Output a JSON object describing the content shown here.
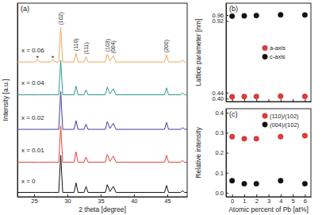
{
  "chart_data": [
    {
      "type": "line",
      "title": "(a)",
      "x_label": "2 theta [degree]",
      "y_label": "Intensity [a.u.]",
      "x": [
        22.5,
        25.2,
        25.5,
        25.8,
        27.5,
        27.8,
        28.1,
        28.7,
        29.0,
        29.3,
        31.0,
        31.3,
        31.6,
        32.5,
        32.8,
        33.1,
        35.7,
        36.0,
        36.4,
        36.9,
        37.3,
        44.6,
        44.9,
        45.2,
        47.0,
        47.3,
        47.6,
        48.0
      ],
      "series": [
        {
          "name": "x = 0",
          "color": "#111111",
          "values": [
            2.5,
            2.5,
            2.5,
            2.5,
            2.5,
            2.5,
            2.5,
            2.5,
            24,
            2.5,
            2.5,
            8,
            2.5,
            2.5,
            6,
            2.5,
            2.5,
            7,
            3,
            6,
            2.5,
            2.5,
            6.5,
            2.5,
            2.5,
            3.5,
            2.5,
            2.5
          ]
        },
        {
          "name": "x = 0.01",
          "color": "#e0453c",
          "values": [
            20,
            20,
            20,
            20,
            20,
            20,
            20,
            20,
            41,
            20,
            20,
            26,
            20,
            20,
            23,
            20,
            20,
            24.5,
            20.5,
            23.5,
            20,
            20,
            24,
            20,
            20,
            21,
            20,
            20
          ]
        },
        {
          "name": "x = 0.02",
          "color": "#3b3f9c",
          "values": [
            39,
            39,
            39,
            39,
            39,
            39,
            39,
            39,
            61,
            39,
            39,
            44,
            39,
            39,
            42,
            39,
            39,
            43.5,
            39.5,
            42.5,
            39,
            39,
            43,
            39,
            39,
            40,
            39,
            39
          ]
        },
        {
          "name": "x = 0.04",
          "color": "#2a9a8c",
          "values": [
            59,
            59,
            59,
            59,
            59,
            59,
            59,
            59,
            79,
            59,
            59,
            64,
            59,
            59,
            62,
            59,
            59,
            63.5,
            59.5,
            62.5,
            59,
            59,
            63,
            59,
            59,
            60,
            59,
            59
          ]
        },
        {
          "name": "x = 0.06",
          "color": "#f2a55a",
          "values": [
            78,
            78,
            79.5,
            78,
            78,
            79.5,
            78,
            78,
            98,
            78,
            78,
            83,
            78,
            78,
            81,
            78,
            78,
            82.5,
            78.5,
            81.5,
            78,
            78,
            82,
            78,
            78,
            79,
            78,
            78
          ]
        }
      ],
      "xlim": [
        22.5,
        48
      ],
      "ylim": [
        0,
        112
      ],
      "xticks": [
        25,
        30,
        35,
        40,
        45
      ],
      "yticks": [],
      "tick_labels": "x",
      "annotations": [
        {
          "text": "(102)",
          "x": 29.0
        },
        {
          "text": "(110)",
          "x": 31.3
        },
        {
          "text": "(111)",
          "x": 32.8
        },
        {
          "text": "(103)",
          "x": 36.0
        },
        {
          "text": "(004)",
          "x": 36.9
        },
        {
          "text": "(200)",
          "x": 44.9
        },
        {
          "text": "*",
          "x": 25.5
        },
        {
          "text": "*",
          "x": 27.8
        }
      ]
    },
    {
      "type": "scatter",
      "title": "(b)",
      "y_label": "Lattice parameter [nm]",
      "x": [
        0,
        1,
        2,
        4,
        6
      ],
      "series": [
        {
          "name": "a-axis",
          "color": "#e53935",
          "marker": "circle",
          "values": [
            0.412,
            0.413,
            0.414,
            0.416,
            0.415
          ]
        },
        {
          "name": "c-axis",
          "color": "#111111",
          "marker": "circle",
          "values": [
            0.953,
            0.955,
            0.957,
            0.962,
            0.961
          ]
        }
      ],
      "xlim": [
        -0.5,
        6.5
      ],
      "ylim": [
        0.38,
        1.04
      ],
      "xticks": [
        0,
        1,
        2,
        3,
        4,
        5,
        6
      ],
      "yticks": [
        {
          "value": 0.4,
          "label": "0.40"
        },
        0.44,
        0.92,
        0.96
      ],
      "tick_labels": "y",
      "legend": "right"
    },
    {
      "type": "scatter",
      "title": "(c)",
      "x_label": "Atomic percent of Pb [at%]",
      "y_label": "Relative intensity",
      "x": [
        0,
        1,
        2,
        4,
        6
      ],
      "series": [
        {
          "name": "(110)/(102)",
          "color": "#e53935",
          "marker": "circle",
          "values": [
            0.28,
            0.27,
            0.27,
            0.28,
            0.285
          ]
        },
        {
          "name": "(004)/(102)",
          "color": "#111111",
          "marker": "circle",
          "values": [
            0.06,
            0.045,
            0.045,
            0.06,
            0.045
          ]
        }
      ],
      "xlim": [
        -0.5,
        6.5
      ],
      "ylim": [
        -0.02,
        0.42
      ],
      "xticks": [
        0,
        1,
        2,
        3,
        4,
        5,
        6
      ],
      "yticks": [
        {
          "value": 0,
          "label": "0.0"
        },
        0.1,
        0.2,
        0.3,
        0.4
      ],
      "legend": "upper right"
    }
  ]
}
